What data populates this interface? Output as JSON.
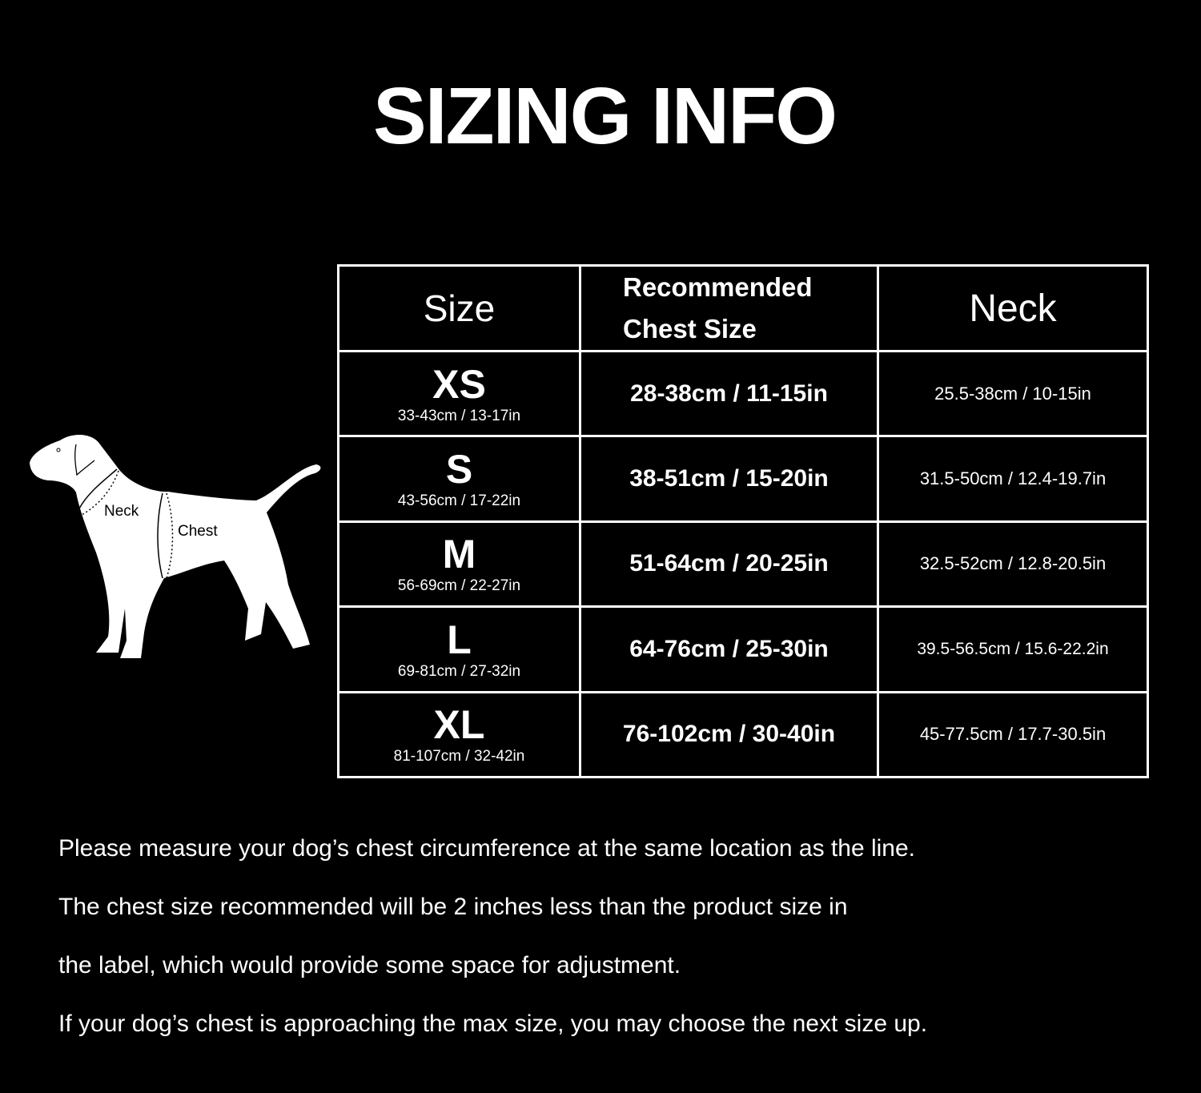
{
  "title": "SIZING INFO",
  "diagram": {
    "neck_label": "Neck",
    "chest_label": "Chest"
  },
  "table": {
    "headers": {
      "size": "Size",
      "chest_line1": "Recommended",
      "chest_line2": "Chest Size",
      "neck": "Neck"
    },
    "rows": [
      {
        "size": "XS",
        "product": "33-43cm / 13-17in",
        "chest": "28-38cm / 11-15in",
        "neck": "25.5-38cm / 10-15in"
      },
      {
        "size": "S",
        "product": "43-56cm / 17-22in",
        "chest": "38-51cm / 15-20in",
        "neck": "31.5-50cm / 12.4-19.7in"
      },
      {
        "size": "M",
        "product": "56-69cm / 22-27in",
        "chest": "51-64cm / 20-25in",
        "neck": "32.5-52cm / 12.8-20.5in"
      },
      {
        "size": "L",
        "product": "69-81cm / 27-32in",
        "chest": "64-76cm / 25-30in",
        "neck": "39.5-56.5cm / 15.6-22.2in"
      },
      {
        "size": "XL",
        "product": "81-107cm / 32-42in",
        "chest": "76-102cm / 30-40in",
        "neck": "45-77.5cm / 17.7-30.5in"
      }
    ]
  },
  "notes": [
    "Please measure your dog’s chest circumference at the same location as the line.",
    "The chest size recommended will be 2 inches less than the product size in",
    "the label, which would provide some space for adjustment.",
    "If your dog’s chest is approaching the max size, you may choose the next size up."
  ]
}
